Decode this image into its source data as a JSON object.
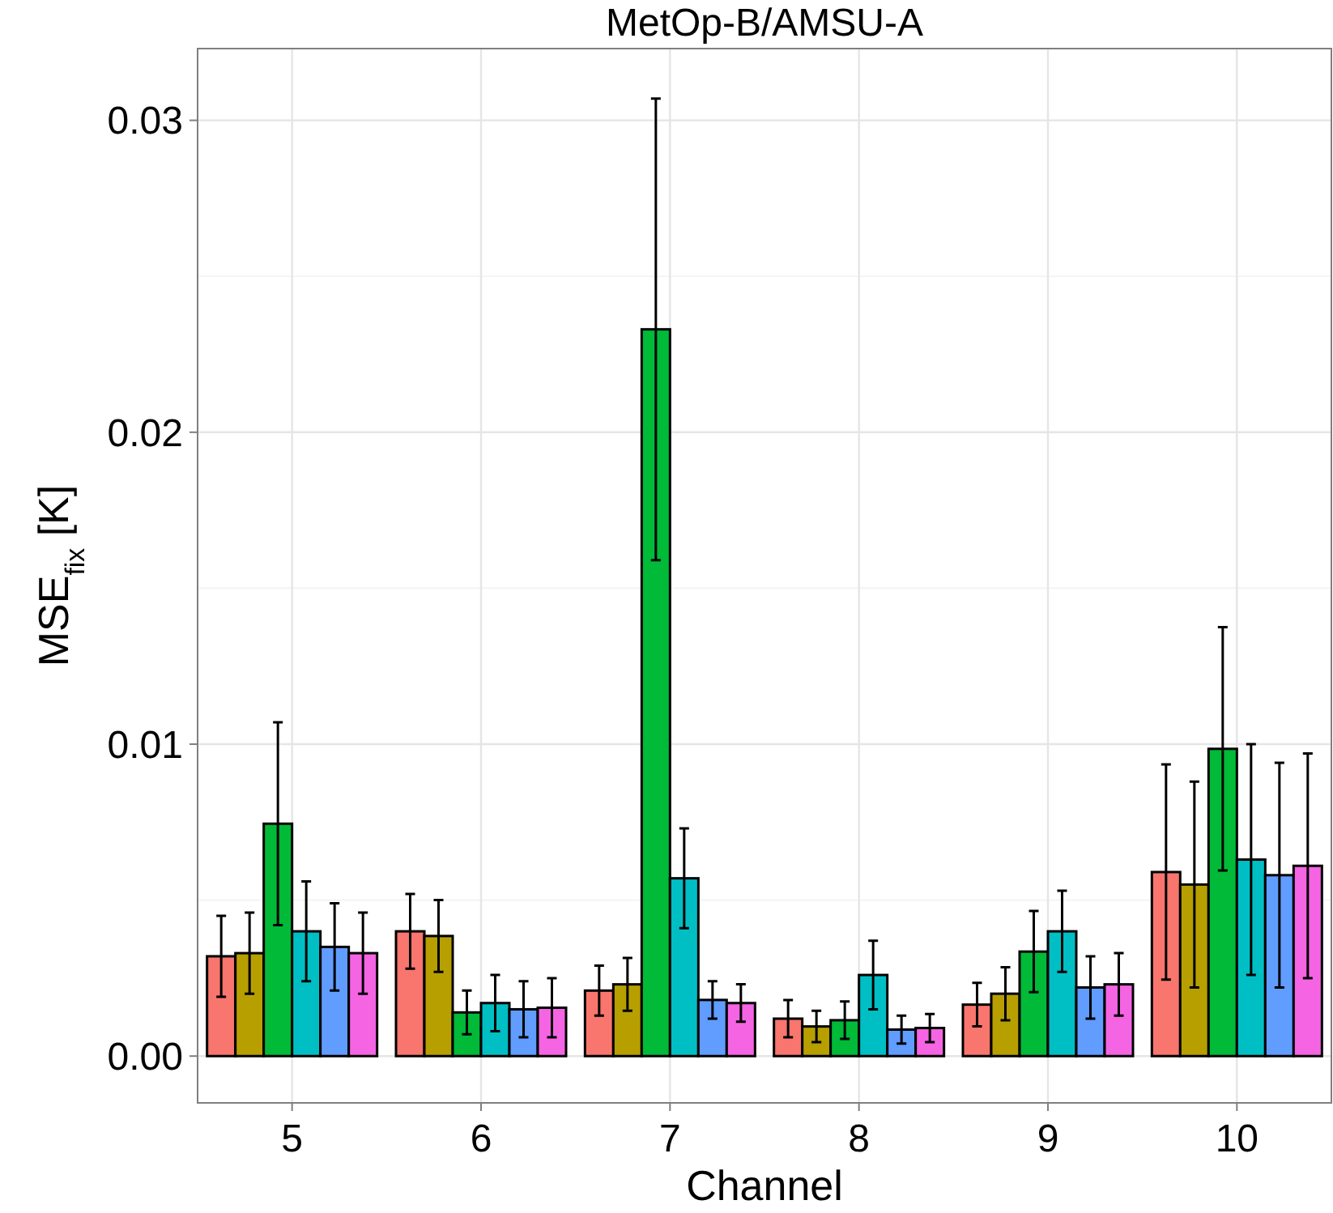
{
  "chart_data": {
    "type": "bar",
    "title": "MetOp-B/AMSU-A",
    "xlabel": "Channel",
    "ylabel": "MSE$_{fix}$ [K]",
    "categories": [
      "5",
      "6",
      "7",
      "8",
      "9",
      "10"
    ],
    "series": [
      {
        "color": "#f8766d",
        "values": [
          0.0032,
          0.004,
          0.0021,
          0.0012,
          0.00165,
          0.0059
        ],
        "errors": [
          0.0013,
          0.0012,
          0.0008,
          0.0006,
          0.0007,
          0.00345
        ]
      },
      {
        "color": "#b79f00",
        "values": [
          0.0033,
          0.00385,
          0.0023,
          0.00095,
          0.002,
          0.0055
        ],
        "errors": [
          0.0013,
          0.00115,
          0.00085,
          0.0005,
          0.00085,
          0.0033
        ]
      },
      {
        "color": "#00ba38",
        "values": [
          0.00745,
          0.0014,
          0.0233,
          0.00115,
          0.00335,
          0.00985
        ],
        "errors": [
          0.00325,
          0.0007,
          0.0074,
          0.0006,
          0.0013,
          0.0039
        ]
      },
      {
        "color": "#00bfc4",
        "values": [
          0.004,
          0.0017,
          0.0057,
          0.0026,
          0.004,
          0.0063
        ],
        "errors": [
          0.0016,
          0.0009,
          0.0016,
          0.0011,
          0.0013,
          0.0037
        ]
      },
      {
        "color": "#619cff",
        "values": [
          0.0035,
          0.0015,
          0.0018,
          0.00085,
          0.0022,
          0.0058
        ],
        "errors": [
          0.0014,
          0.0009,
          0.0006,
          0.00045,
          0.001,
          0.0036
        ]
      },
      {
        "color": "#f564e3",
        "values": [
          0.0033,
          0.00155,
          0.0017,
          0.0009,
          0.0023,
          0.0061
        ],
        "errors": [
          0.0013,
          0.00095,
          0.0006,
          0.00045,
          0.001,
          0.0036
        ]
      }
    ],
    "ylim": [
      -0.0015,
      0.0323
    ],
    "yticks": [
      {
        "value": 0,
        "label": "0.00"
      },
      {
        "value": 0.005,
        "label": null
      },
      {
        "value": 0.01,
        "label": "0.01"
      },
      {
        "value": 0.015,
        "label": null
      },
      {
        "value": 0.02,
        "label": "0.02"
      },
      {
        "value": 0.025,
        "label": null
      },
      {
        "value": 0.03,
        "label": "0.03"
      }
    ],
    "grid": true
  }
}
